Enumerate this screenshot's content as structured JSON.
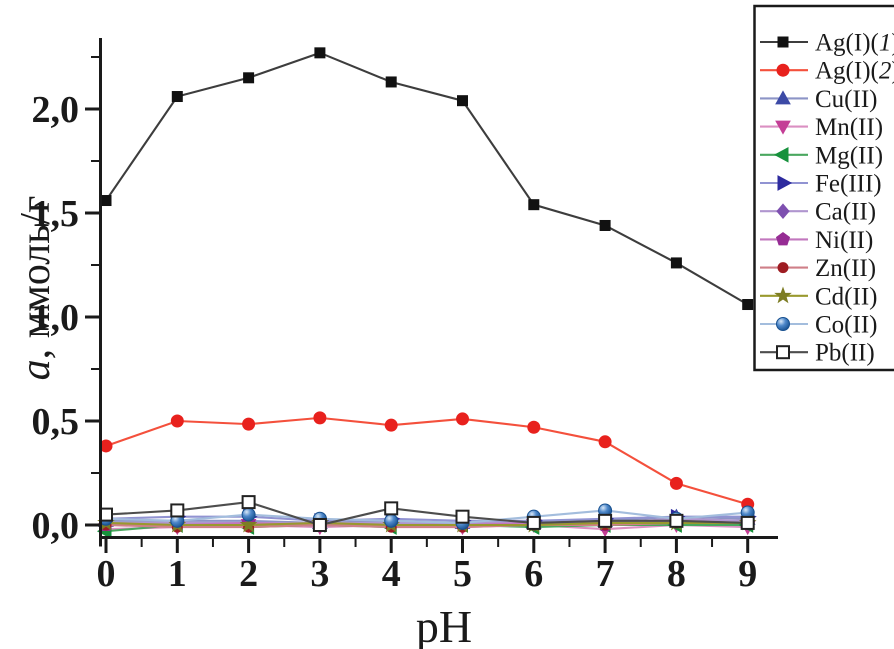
{
  "figure": {
    "xlabel": "pH",
    "ylabel": {
      "italic": "a",
      "rest": ", ммоль/г"
    },
    "background": "#ffffff",
    "axis_color": "#1a1a1a"
  },
  "chart_data": {
    "type": "line",
    "title": "",
    "xlabel": "pH",
    "ylabel": "a, ммоль/г",
    "xlim": [
      -0.1,
      9.42
    ],
    "ylim": [
      -0.06,
      2.35
    ],
    "grid": false,
    "legend_position": "top-right",
    "x": [
      0,
      1,
      2,
      3,
      4,
      5,
      6,
      7,
      8,
      9
    ],
    "x_ticks": {
      "major": [
        0,
        1,
        2,
        3,
        4,
        5,
        6,
        7,
        8,
        9
      ],
      "labels": [
        "0",
        "1",
        "2",
        "3",
        "4",
        "5",
        "6",
        "7",
        "8",
        "9"
      ],
      "minor_step": 0.5
    },
    "y_ticks": {
      "major": [
        0,
        0.5,
        1.0,
        1.5,
        2.0
      ],
      "labels": [
        "0,0",
        "0,5",
        "1,0",
        "1,5",
        "2,0"
      ],
      "minor_step": 0.25
    },
    "series": [
      {
        "name": "Ag(I)",
        "variant": "1",
        "marker": "square",
        "marker_color": "#111111",
        "line_color": "#3d3d3d",
        "values": [
          1.56,
          2.06,
          2.15,
          2.27,
          2.13,
          2.04,
          1.54,
          1.44,
          1.26,
          1.06
        ]
      },
      {
        "name": "Ag(I)",
        "variant": "2",
        "marker": "circle",
        "marker_color": "#e8211d",
        "line_color": "#f4503c",
        "values": [
          0.38,
          0.5,
          0.485,
          0.515,
          0.48,
          0.51,
          0.47,
          0.4,
          0.2,
          0.1
        ]
      },
      {
        "name": "Cu(II)",
        "marker": "triangle-up",
        "marker_color": "#3c4aa6",
        "line_color": "#8c94c6",
        "values": [
          0.02,
          0.02,
          0.02,
          0.01,
          0.02,
          0.01,
          0.01,
          0.02,
          0.04,
          0.03
        ]
      },
      {
        "name": "Mn(II)",
        "marker": "triangle-down",
        "marker_color": "#c43e96",
        "line_color": "#db8fc2",
        "values": [
          -0.02,
          -0.01,
          0.0,
          -0.01,
          0.0,
          -0.01,
          0.0,
          -0.02,
          0.0,
          -0.01
        ]
      },
      {
        "name": "Mg(II)",
        "marker": "triangle-left",
        "marker_color": "#17913c",
        "line_color": "#4aa75f",
        "values": [
          -0.03,
          0.0,
          -0.01,
          0.0,
          -0.01,
          0.0,
          -0.01,
          0.0,
          0.0,
          0.0
        ]
      },
      {
        "name": "Fe(III)",
        "marker": "triangle-right",
        "marker_color": "#2d2a9e",
        "line_color": "#9193d2",
        "values": [
          0.03,
          0.04,
          0.04,
          0.02,
          0.03,
          0.02,
          0.02,
          0.03,
          0.04,
          0.04
        ]
      },
      {
        "name": "Ca(II)",
        "marker": "diamond",
        "marker_color": "#7e50b0",
        "line_color": "#b096cf",
        "values": [
          0.01,
          0.01,
          0.01,
          0.01,
          0.01,
          0.01,
          0.01,
          0.01,
          0.03,
          0.02
        ]
      },
      {
        "name": "Ni(II)",
        "marker": "pentagon",
        "marker_color": "#962c94",
        "line_color": "#c277be",
        "values": [
          0.0,
          0.0,
          0.01,
          0.0,
          0.0,
          0.0,
          0.01,
          0.0,
          0.02,
          0.01
        ]
      },
      {
        "name": "Zn(II)",
        "marker": "circle-small",
        "marker_color": "#9e1c22",
        "line_color": "#cf7f88",
        "values": [
          0.0,
          -0.01,
          -0.01,
          0.0,
          -0.01,
          -0.01,
          0.0,
          0.0,
          0.01,
          0.01
        ]
      },
      {
        "name": "Cd(II)",
        "marker": "star",
        "marker_color": "#7d7d24",
        "line_color": "#99992e",
        "values": [
          0.01,
          0.0,
          0.0,
          0.01,
          0.0,
          0.0,
          0.0,
          0.01,
          0.01,
          0.01
        ]
      },
      {
        "name": "Co(II)",
        "marker": "sphere",
        "marker_color": "#2264b4",
        "line_color": "#a3bddd",
        "values": [
          0.03,
          0.02,
          0.05,
          0.03,
          0.02,
          0.01,
          0.04,
          0.07,
          0.03,
          0.06
        ]
      },
      {
        "name": "Pb(II)",
        "marker": "square-open",
        "marker_color": "#ffffff",
        "marker_stroke": "#222222",
        "line_color": "#4d4d4d",
        "values": [
          0.05,
          0.07,
          0.11,
          0.0,
          0.08,
          0.04,
          0.01,
          0.02,
          0.02,
          0.01
        ]
      }
    ]
  }
}
